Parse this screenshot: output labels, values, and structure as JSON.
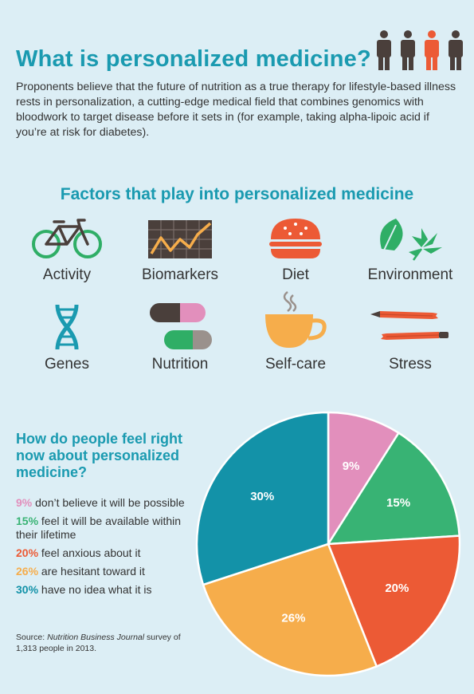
{
  "title": "What is personalized medicine?",
  "intro": "Proponents believe that the future of nutrition as a true therapy for lifestyle-based illness rests in personalization, a cutting-edge medical field that combines genomics with bloodwork to target disease before it sets in (for example, taking alpha-lipoic acid if you’re at risk for diabetes).",
  "factors_title": "Factors that play into personalized medicine",
  "factors": [
    {
      "label": "Activity",
      "icon": "bicycle-icon"
    },
    {
      "label": "Biomarkers",
      "icon": "biomarker-chart-icon"
    },
    {
      "label": "Diet",
      "icon": "burger-icon"
    },
    {
      "label": "Environment",
      "icon": "leaves-icon"
    },
    {
      "label": "Genes",
      "icon": "dna-icon"
    },
    {
      "label": "Nutrition",
      "icon": "capsules-icon"
    },
    {
      "label": "Self-care",
      "icon": "teacup-icon"
    },
    {
      "label": "Stress",
      "icon": "broken-pencils-icon"
    }
  ],
  "question": "How do people feel right now about personalized medicine?",
  "legend": [
    {
      "pct": "9%",
      "text": "don’t believe it will be possible"
    },
    {
      "pct": "15%",
      "text": "feel it will be available within their lifetime"
    },
    {
      "pct": "20%",
      "text": "feel anxious about it"
    },
    {
      "pct": "26%",
      "text": "are hesitant toward it"
    },
    {
      "pct": "30%",
      "text": "have no idea what it is"
    }
  ],
  "source": {
    "prefix": "Source: ",
    "publication": "Nutrition Business Journal",
    "suffix": " survey of 1,313 people in 2013."
  },
  "colors": {
    "title": "#1a9ab0",
    "pink": "#e28fbc",
    "green": "#38b374",
    "red": "#ec5a35",
    "orange": "#f6ad4b",
    "teal": "#1392a8",
    "person_dark": "#4a3f3b",
    "person_highlight": "#ec5a35"
  },
  "chart_data": {
    "type": "pie",
    "categories": [
      "don’t believe it will be possible",
      "feel it will be available within their lifetime",
      "feel anxious about it",
      "are hesitant toward it",
      "have no idea what it is"
    ],
    "values": [
      9,
      15,
      20,
      26,
      30
    ],
    "labels": [
      "9%",
      "15%",
      "20%",
      "26%",
      "30%"
    ],
    "colors": [
      "#e28fbc",
      "#38b374",
      "#ec5a35",
      "#f6ad4b",
      "#1392a8"
    ],
    "start": "12 o'clock",
    "direction": "clockwise"
  }
}
